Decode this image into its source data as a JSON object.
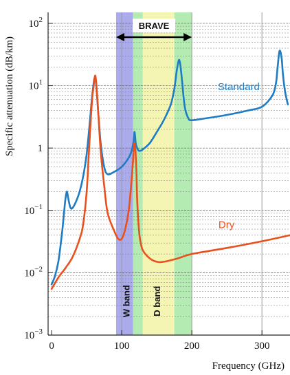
{
  "colors": {
    "standard": "#1f7cc4",
    "dry": "#e8501c",
    "w_band": "#9c9ce8",
    "w_band_green": "#a6e8a6",
    "d_band": "#f3f3a6",
    "d_band_green": "#a6e8a6"
  },
  "chart_data": {
    "type": "line",
    "title": "",
    "xlabel": "Frequency (GHz)",
    "ylabel": "Specific attenuation (dB/km)",
    "xlim": [
      -5,
      340
    ],
    "ylim": [
      0.001,
      150
    ],
    "yscale": "log",
    "grid": "horizontal dashed at minor log ticks, vertical solid at 100/200/300",
    "x_ticks": [
      0,
      100,
      200,
      300
    ],
    "x_tick_labels": [
      "0",
      "100",
      "200",
      "300"
    ],
    "y_ticks": [
      0.001,
      0.01,
      0.1,
      1,
      10,
      100
    ],
    "y_tick_labels": [
      {
        "base": "10",
        "exp": "−3"
      },
      {
        "base": "10",
        "exp": "−2"
      },
      {
        "base": "10",
        "exp": "−1"
      },
      {
        "base": "1",
        "exp": ""
      },
      {
        "base": "10",
        "exp": "1"
      },
      {
        "base": "10",
        "exp": "2"
      }
    ],
    "bands": [
      {
        "from": 92,
        "to": 116,
        "color_key": "w_band"
      },
      {
        "from": 116,
        "to": 130,
        "color_key": "w_band_green"
      },
      {
        "from": 130,
        "to": 175,
        "color_key": "d_band"
      },
      {
        "from": 175,
        "to": 200,
        "color_key": "d_band_green"
      }
    ],
    "band_labels": [
      {
        "text": "W band",
        "x": 106
      },
      {
        "text": "D band",
        "x": 150
      }
    ],
    "brave": {
      "text": "BRAVE",
      "from": 92,
      "to": 200
    },
    "series": [
      {
        "name": "Standard",
        "color_key": "standard",
        "label_at": {
          "x": 237,
          "y": 8.5
        },
        "x": [
          0,
          5,
          10,
          15,
          18,
          20,
          22,
          24,
          27,
          30,
          35,
          40,
          45,
          50,
          55,
          57,
          59,
          61,
          63,
          66,
          70,
          75,
          80,
          90,
          100,
          110,
          114,
          117,
          118,
          119,
          120,
          122,
          125,
          130,
          140,
          150,
          160,
          170,
          175,
          178,
          180,
          182,
          184,
          186,
          190,
          195,
          200,
          220,
          250,
          280,
          300,
          315,
          320,
          322,
          325,
          328,
          330,
          333,
          337
        ],
        "y": [
          0.0065,
          0.009,
          0.016,
          0.045,
          0.1,
          0.16,
          0.2,
          0.15,
          0.11,
          0.11,
          0.14,
          0.2,
          0.35,
          0.8,
          3.0,
          5.5,
          9.0,
          13.0,
          12.0,
          4.5,
          1.2,
          0.5,
          0.38,
          0.42,
          0.5,
          0.7,
          0.9,
          1.3,
          1.8,
          1.6,
          1.2,
          1.0,
          0.9,
          0.95,
          1.2,
          1.8,
          2.8,
          5.0,
          9.0,
          16.0,
          22.0,
          26.0,
          20.0,
          12.0,
          4.5,
          3.0,
          2.8,
          3.0,
          3.4,
          4.0,
          4.6,
          7.0,
          11.0,
          18.0,
          36.0,
          28.0,
          15.0,
          8.0,
          5.0
        ]
      },
      {
        "name": "Dry",
        "color_key": "dry",
        "label_at": {
          "x": 238,
          "y": 0.052
        },
        "x": [
          0,
          10,
          20,
          30,
          40,
          45,
          50,
          53,
          56,
          58,
          60,
          61,
          62,
          63,
          65,
          67,
          70,
          75,
          80,
          90,
          95,
          100,
          105,
          110,
          114,
          116,
          117,
          118,
          119,
          120,
          121,
          122,
          124,
          126,
          130,
          140,
          150,
          160,
          180,
          200,
          250,
          300,
          340
        ],
        "y": [
          0.0055,
          0.0085,
          0.012,
          0.018,
          0.035,
          0.06,
          0.2,
          0.8,
          3.0,
          6.5,
          10.0,
          12.5,
          14.5,
          13.0,
          7.0,
          3.0,
          0.9,
          0.25,
          0.09,
          0.045,
          0.035,
          0.035,
          0.05,
          0.1,
          0.3,
          0.6,
          0.95,
          1.2,
          1.1,
          0.75,
          0.4,
          0.15,
          0.06,
          0.035,
          0.023,
          0.017,
          0.015,
          0.015,
          0.017,
          0.02,
          0.025,
          0.032,
          0.04
        ]
      }
    ]
  }
}
